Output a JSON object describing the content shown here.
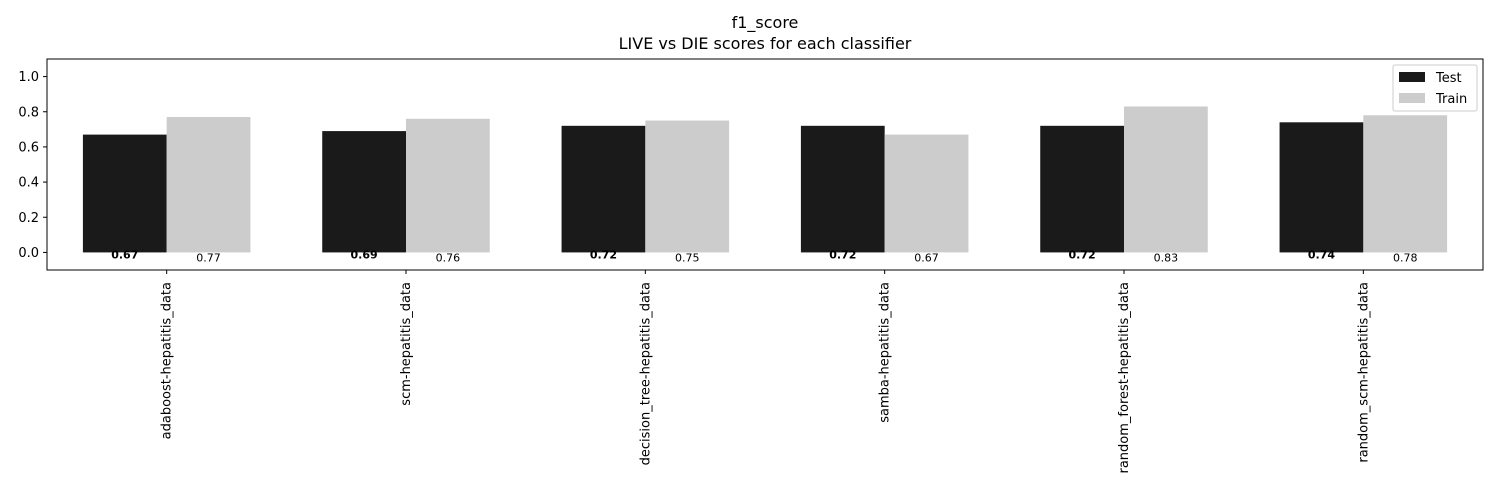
{
  "chart_data": {
    "type": "bar",
    "title": "f1_score",
    "subtitle": "LIVE vs DIE scores for each classifier",
    "categories": [
      "adaboost-hepatitis_data",
      "scm-hepatitis_data",
      "decision_tree-hepatitis_data",
      "samba-hepatitis_data",
      "random_forest-hepatitis_data",
      "random_scm-hepatitis_data"
    ],
    "series": [
      {
        "name": "Test",
        "color": "#1a1a1a",
        "values": [
          0.67,
          0.69,
          0.72,
          0.72,
          0.72,
          0.74
        ],
        "labels": [
          "0.67",
          "0.69",
          "0.72",
          "0.72",
          "0.72",
          "0.74"
        ]
      },
      {
        "name": "Train",
        "color": "#cccccc",
        "values": [
          0.77,
          0.76,
          0.75,
          0.67,
          0.83,
          0.78
        ],
        "labels": [
          "0.77",
          "0.76",
          "0.75",
          "0.67",
          "0.83",
          "0.78"
        ]
      }
    ],
    "ylim": [
      -0.1,
      1.1
    ],
    "yticks": [
      "0.0",
      "0.2",
      "0.4",
      "0.6",
      "0.8",
      "1.0"
    ],
    "grid": false,
    "legend_position": "top-right"
  }
}
